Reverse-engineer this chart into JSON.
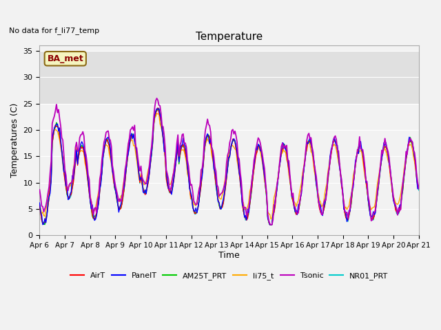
{
  "title": "Temperature",
  "ylabel": "Temperatures (C)",
  "xlabel": "Time",
  "no_data_text": "No data for f_li77_temp",
  "annotation_text": "BA_met",
  "ylim": [
    0,
    36
  ],
  "yticks": [
    0,
    5,
    10,
    15,
    20,
    25,
    30,
    35
  ],
  "xticklabels": [
    "Apr 6",
    "Apr 7",
    "Apr 8",
    "Apr 9",
    "Apr 10",
    "Apr 11",
    "Apr 12",
    "Apr 13",
    "Apr 14",
    "Apr 15",
    "Apr 16",
    "Apr 17",
    "Apr 18",
    "Apr 19",
    "Apr 20",
    "Apr 21"
  ],
  "colors": {
    "AirT": "#ff0000",
    "PanelT": "#0000ff",
    "AM25T_PRT": "#00cc00",
    "li75_t": "#ffaa00",
    "Tsonic": "#bb00bb",
    "NR01_PRT": "#00cccc"
  },
  "shaded_region": [
    25,
    35
  ],
  "fig_bg": "#f2f2f2",
  "ax_bg": "#f2f2f2",
  "grid_color": "#ffffff"
}
